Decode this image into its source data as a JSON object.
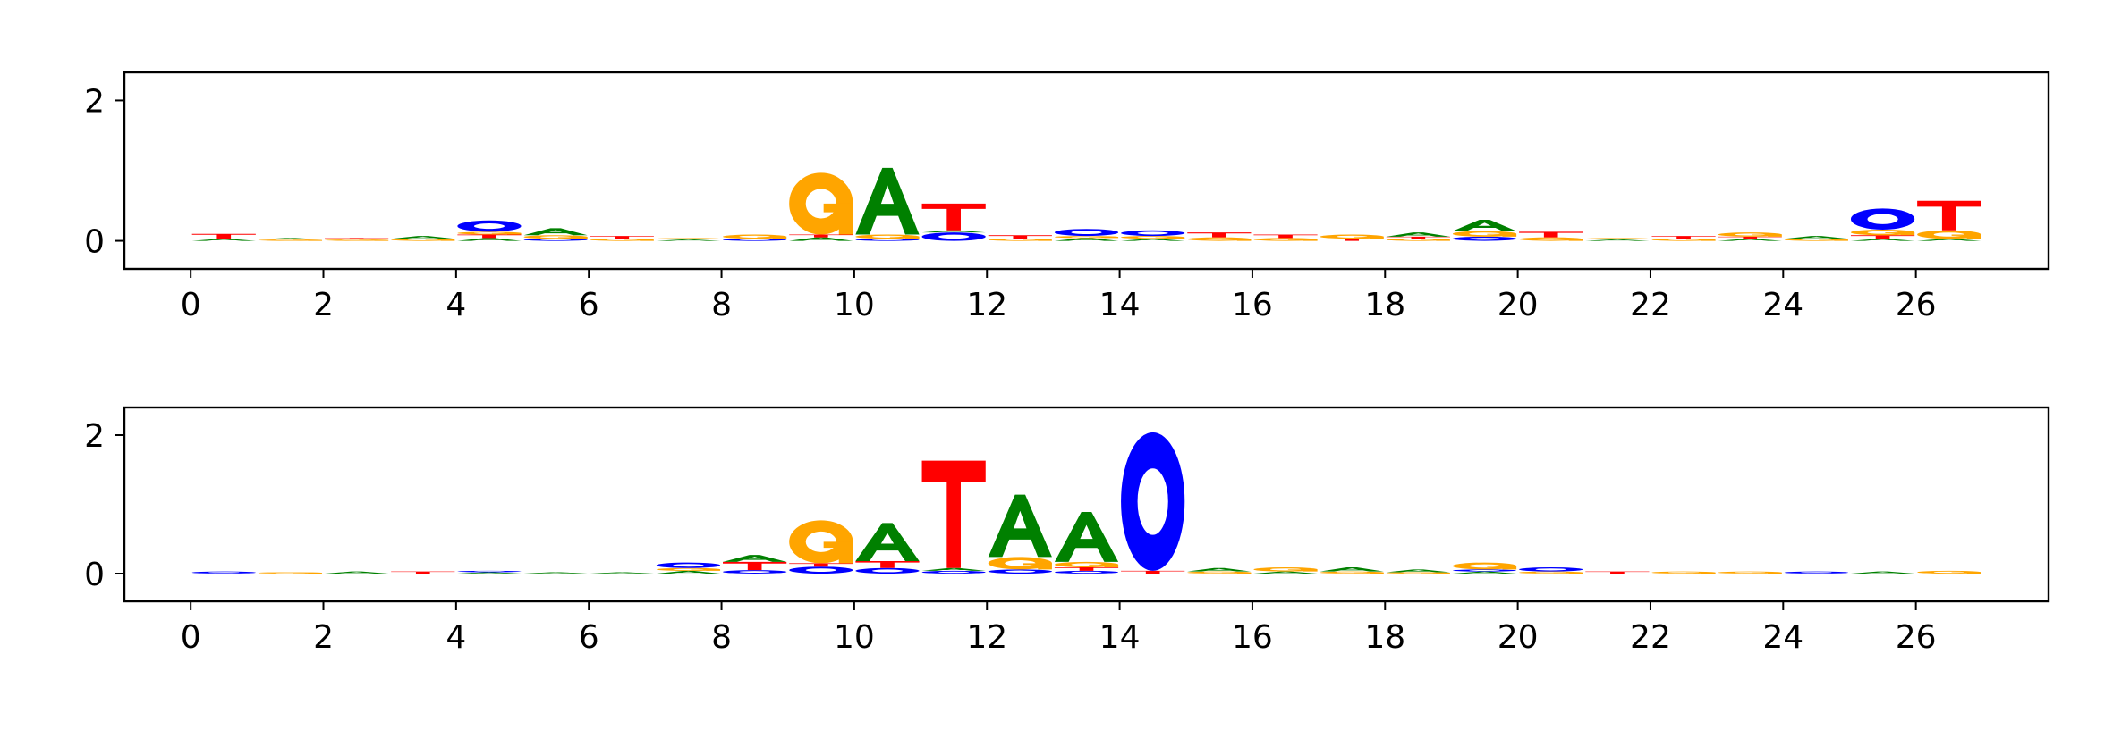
{
  "colors": {
    "A": "#008000",
    "C": "#0000ff",
    "G": "#ffa500",
    "T": "#ff0000"
  },
  "chart_data": [
    {
      "type": "sequence-logo",
      "title": "",
      "xlabel": "",
      "ylabel": "",
      "xlim": [
        -1,
        28
      ],
      "ylim": [
        -0.4,
        2.4
      ],
      "xticks": [
        0,
        2,
        4,
        6,
        8,
        10,
        12,
        14,
        16,
        18,
        20,
        22,
        24,
        26
      ],
      "yticks": [
        0,
        2
      ],
      "positions": [
        {
          "x": 0,
          "letters": [
            {
              "base": "A",
              "height": 0.03
            },
            {
              "base": "T",
              "height": 0.07
            }
          ]
        },
        {
          "x": 1,
          "letters": [
            {
              "base": "G",
              "height": 0.02
            },
            {
              "base": "A",
              "height": 0.02
            }
          ]
        },
        {
          "x": 2,
          "letters": [
            {
              "base": "G",
              "height": 0.02
            },
            {
              "base": "T",
              "height": 0.02
            }
          ]
        },
        {
          "x": 3,
          "letters": [
            {
              "base": "G",
              "height": 0.03
            },
            {
              "base": "A",
              "height": 0.04
            }
          ]
        },
        {
          "x": 4,
          "letters": [
            {
              "base": "A",
              "height": 0.04
            },
            {
              "base": "T",
              "height": 0.05
            },
            {
              "base": "G",
              "height": 0.04
            },
            {
              "base": "C",
              "height": 0.16
            }
          ]
        },
        {
          "x": 5,
          "letters": [
            {
              "base": "C",
              "height": 0.03
            },
            {
              "base": "G",
              "height": 0.05
            },
            {
              "base": "A",
              "height": 0.1
            }
          ]
        },
        {
          "x": 6,
          "letters": [
            {
              "base": "G",
              "height": 0.03
            },
            {
              "base": "T",
              "height": 0.04
            }
          ]
        },
        {
          "x": 7,
          "letters": [
            {
              "base": "A",
              "height": 0.02
            },
            {
              "base": "G",
              "height": 0.02
            }
          ]
        },
        {
          "x": 8,
          "letters": [
            {
              "base": "C",
              "height": 0.03
            },
            {
              "base": "G",
              "height": 0.06
            }
          ]
        },
        {
          "x": 9,
          "letters": [
            {
              "base": "A",
              "height": 0.05
            },
            {
              "base": "T",
              "height": 0.04
            },
            {
              "base": "G",
              "height": 0.88
            }
          ]
        },
        {
          "x": 10,
          "letters": [
            {
              "base": "C",
              "height": 0.03
            },
            {
              "base": "G",
              "height": 0.06
            },
            {
              "base": "A",
              "height": 0.95
            }
          ]
        },
        {
          "x": 11,
          "letters": [
            {
              "base": "C",
              "height": 0.12
            },
            {
              "base": "A",
              "height": 0.03
            },
            {
              "base": "T",
              "height": 0.38
            }
          ]
        },
        {
          "x": 12,
          "letters": [
            {
              "base": "G",
              "height": 0.03
            },
            {
              "base": "T",
              "height": 0.05
            }
          ]
        },
        {
          "x": 13,
          "letters": [
            {
              "base": "A",
              "height": 0.04
            },
            {
              "base": "G",
              "height": 0.03
            },
            {
              "base": "C",
              "height": 0.1
            }
          ]
        },
        {
          "x": 14,
          "letters": [
            {
              "base": "A",
              "height": 0.03
            },
            {
              "base": "G",
              "height": 0.04
            },
            {
              "base": "C",
              "height": 0.08
            }
          ]
        },
        {
          "x": 15,
          "letters": [
            {
              "base": "G",
              "height": 0.05
            },
            {
              "base": "T",
              "height": 0.07
            }
          ]
        },
        {
          "x": 16,
          "letters": [
            {
              "base": "G",
              "height": 0.04
            },
            {
              "base": "T",
              "height": 0.05
            }
          ]
        },
        {
          "x": 17,
          "letters": [
            {
              "base": "T",
              "height": 0.03
            },
            {
              "base": "G",
              "height": 0.06
            }
          ]
        },
        {
          "x": 18,
          "letters": [
            {
              "base": "G",
              "height": 0.03
            },
            {
              "base": "T",
              "height": 0.03
            },
            {
              "base": "A",
              "height": 0.06
            }
          ]
        },
        {
          "x": 19,
          "letters": [
            {
              "base": "C",
              "height": 0.06
            },
            {
              "base": "G",
              "height": 0.08
            },
            {
              "base": "A",
              "height": 0.16
            }
          ]
        },
        {
          "x": 20,
          "letters": [
            {
              "base": "G",
              "height": 0.05
            },
            {
              "base": "T",
              "height": 0.08
            }
          ]
        },
        {
          "x": 21,
          "letters": [
            {
              "base": "A",
              "height": 0.02
            },
            {
              "base": "G",
              "height": 0.02
            }
          ]
        },
        {
          "x": 22,
          "letters": [
            {
              "base": "G",
              "height": 0.03
            },
            {
              "base": "T",
              "height": 0.04
            }
          ]
        },
        {
          "x": 23,
          "letters": [
            {
              "base": "A",
              "height": 0.03
            },
            {
              "base": "T",
              "height": 0.03
            },
            {
              "base": "G",
              "height": 0.06
            }
          ]
        },
        {
          "x": 24,
          "letters": [
            {
              "base": "G",
              "height": 0.03
            },
            {
              "base": "A",
              "height": 0.04
            }
          ]
        },
        {
          "x": 25,
          "letters": [
            {
              "base": "A",
              "height": 0.03
            },
            {
              "base": "T",
              "height": 0.05
            },
            {
              "base": "G",
              "height": 0.08
            },
            {
              "base": "C",
              "height": 0.3
            }
          ]
        },
        {
          "x": 26,
          "letters": [
            {
              "base": "A",
              "height": 0.03
            },
            {
              "base": "G",
              "height": 0.12
            },
            {
              "base": "T",
              "height": 0.42
            }
          ]
        }
      ]
    },
    {
      "type": "sequence-logo",
      "title": "",
      "xlabel": "",
      "ylabel": "",
      "xlim": [
        -1,
        28
      ],
      "ylim": [
        -0.4,
        2.4
      ],
      "xticks": [
        0,
        2,
        4,
        6,
        8,
        10,
        12,
        14,
        16,
        18,
        20,
        22,
        24,
        26
      ],
      "yticks": [
        0,
        2
      ],
      "positions": [
        {
          "x": 0,
          "letters": [
            {
              "base": "C",
              "height": 0.03
            }
          ]
        },
        {
          "x": 1,
          "letters": [
            {
              "base": "G",
              "height": 0.02
            }
          ]
        },
        {
          "x": 2,
          "letters": [
            {
              "base": "A",
              "height": 0.03
            }
          ]
        },
        {
          "x": 3,
          "letters": [
            {
              "base": "T",
              "height": 0.03
            }
          ]
        },
        {
          "x": 4,
          "letters": [
            {
              "base": "A",
              "height": 0.02
            },
            {
              "base": "C",
              "height": 0.02
            }
          ]
        },
        {
          "x": 5,
          "letters": [
            {
              "base": "A",
              "height": 0.02
            }
          ]
        },
        {
          "x": 6,
          "letters": [
            {
              "base": "A",
              "height": 0.02
            }
          ]
        },
        {
          "x": 7,
          "letters": [
            {
              "base": "A",
              "height": 0.04
            },
            {
              "base": "G",
              "height": 0.04
            },
            {
              "base": "C",
              "height": 0.08
            }
          ]
        },
        {
          "x": 8,
          "letters": [
            {
              "base": "C",
              "height": 0.05
            },
            {
              "base": "T",
              "height": 0.12
            },
            {
              "base": "A",
              "height": 0.1
            }
          ]
        },
        {
          "x": 9,
          "letters": [
            {
              "base": "C",
              "height": 0.1
            },
            {
              "base": "T",
              "height": 0.05
            },
            {
              "base": "G",
              "height": 0.62
            }
          ]
        },
        {
          "x": 10,
          "letters": [
            {
              "base": "C",
              "height": 0.08
            },
            {
              "base": "T",
              "height": 0.1
            },
            {
              "base": "A",
              "height": 0.55
            }
          ]
        },
        {
          "x": 11,
          "letters": [
            {
              "base": "C",
              "height": 0.04
            },
            {
              "base": "A",
              "height": 0.04
            },
            {
              "base": "T",
              "height": 1.55
            }
          ]
        },
        {
          "x": 12,
          "letters": [
            {
              "base": "C",
              "height": 0.06
            },
            {
              "base": "G",
              "height": 0.18
            },
            {
              "base": "A",
              "height": 0.9
            }
          ]
        },
        {
          "x": 13,
          "letters": [
            {
              "base": "C",
              "height": 0.04
            },
            {
              "base": "T",
              "height": 0.05
            },
            {
              "base": "G",
              "height": 0.08
            },
            {
              "base": "A",
              "height": 0.72
            }
          ]
        },
        {
          "x": 14,
          "letters": [
            {
              "base": "T",
              "height": 0.04
            },
            {
              "base": "C",
              "height": 2.0
            }
          ]
        },
        {
          "x": 15,
          "letters": [
            {
              "base": "G",
              "height": 0.03
            },
            {
              "base": "A",
              "height": 0.05
            }
          ]
        },
        {
          "x": 16,
          "letters": [
            {
              "base": "A",
              "height": 0.03
            },
            {
              "base": "G",
              "height": 0.06
            }
          ]
        },
        {
          "x": 17,
          "letters": [
            {
              "base": "G",
              "height": 0.03
            },
            {
              "base": "A",
              "height": 0.06
            }
          ]
        },
        {
          "x": 18,
          "letters": [
            {
              "base": "G",
              "height": 0.02
            },
            {
              "base": "A",
              "height": 0.04
            }
          ]
        },
        {
          "x": 19,
          "letters": [
            {
              "base": "A",
              "height": 0.03
            },
            {
              "base": "C",
              "height": 0.03
            },
            {
              "base": "G",
              "height": 0.1
            }
          ]
        },
        {
          "x": 20,
          "letters": [
            {
              "base": "G",
              "height": 0.03
            },
            {
              "base": "C",
              "height": 0.06
            }
          ]
        },
        {
          "x": 21,
          "letters": [
            {
              "base": "T",
              "height": 0.03
            }
          ]
        },
        {
          "x": 22,
          "letters": [
            {
              "base": "G",
              "height": 0.03
            }
          ]
        },
        {
          "x": 23,
          "letters": [
            {
              "base": "G",
              "height": 0.03
            }
          ]
        },
        {
          "x": 24,
          "letters": [
            {
              "base": "C",
              "height": 0.03
            }
          ]
        },
        {
          "x": 25,
          "letters": [
            {
              "base": "A",
              "height": 0.03
            }
          ]
        },
        {
          "x": 26,
          "letters": [
            {
              "base": "G",
              "height": 0.04
            }
          ]
        }
      ]
    }
  ]
}
